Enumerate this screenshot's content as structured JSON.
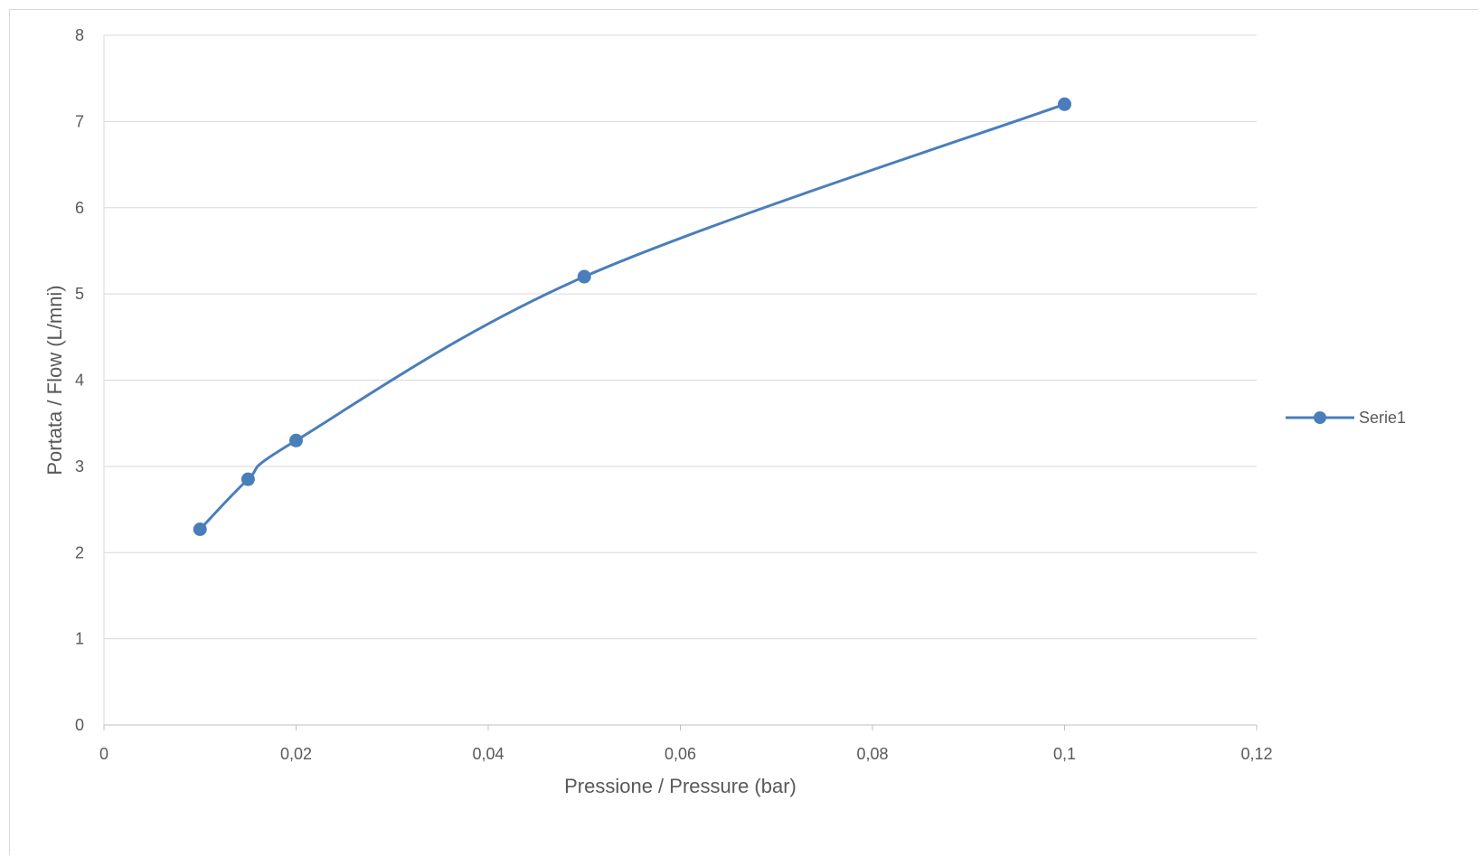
{
  "chart_data": {
    "type": "line",
    "smooth": true,
    "xlabel": "Pressione / Pressure (bar)",
    "ylabel": "Portata / Flow (L/mni)",
    "xlim": [
      0,
      0.12
    ],
    "ylim": [
      0,
      8
    ],
    "x_ticks": [
      {
        "value": 0,
        "label": "0"
      },
      {
        "value": 0.02,
        "label": "0,02"
      },
      {
        "value": 0.04,
        "label": "0,04"
      },
      {
        "value": 0.06,
        "label": "0,06"
      },
      {
        "value": 0.08,
        "label": "0,08"
      },
      {
        "value": 0.1,
        "label": "0,1"
      },
      {
        "value": 0.12,
        "label": "0,12"
      }
    ],
    "y_ticks": [
      {
        "value": 0,
        "label": "0"
      },
      {
        "value": 1,
        "label": "1"
      },
      {
        "value": 2,
        "label": "2"
      },
      {
        "value": 3,
        "label": "3"
      },
      {
        "value": 4,
        "label": "4"
      },
      {
        "value": 5,
        "label": "5"
      },
      {
        "value": 6,
        "label": "6"
      },
      {
        "value": 7,
        "label": "7"
      },
      {
        "value": 8,
        "label": "8"
      }
    ],
    "grid": "horizontal",
    "legend_position": "right",
    "series": [
      {
        "name": "Serie1",
        "color": "#4a7ebb",
        "x": [
          0.01,
          0.015,
          0.02,
          0.05,
          0.1
        ],
        "y": [
          2.27,
          2.85,
          3.3,
          5.2,
          7.2
        ]
      }
    ]
  }
}
